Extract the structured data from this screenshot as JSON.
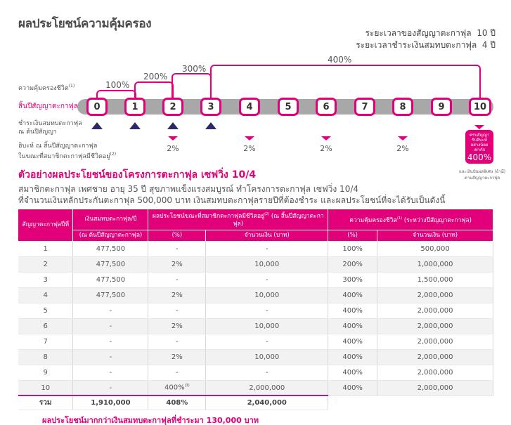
{
  "title": "ผลประโยชน์ความคุ้มครอง",
  "contract_period": {
    "label": "ระยะเวลาของสัญญาตะกาฟุล",
    "value": "10 ปี"
  },
  "payment_period": {
    "label": "ระยะเวลาชำระเงินสมทบตะกาฟุล",
    "value": "4 ปี"
  },
  "side_labels": {
    "life_coverage": "ความคุ้มครองชีวิต",
    "life_coverage_sup": "(1)",
    "year_end": "สิ้นปีสัญญาตะกาฟุลที่",
    "pay_line1": "ชำระเงินสมทบตะกาฟุล",
    "pay_line2": "ณ ต้นปีสัญญา",
    "benefit_line1": "ฮิบะห์ ณ สิ้นปีสัญญาตะกาฟุล",
    "benefit_line2": "ในขณะที่สมาชิกตะกาฟุลมีชีวิตอยู่",
    "benefit_sup": "(2)"
  },
  "timeline": {
    "years": [
      "0",
      "1",
      "2",
      "3",
      "4",
      "5",
      "6",
      "7",
      "8",
      "9",
      "10"
    ],
    "coverage_steps": [
      "100%",
      "200%",
      "300%",
      "400%"
    ],
    "benefit_pcts": [
      "2%",
      "2%",
      "2%",
      "2%"
    ]
  },
  "badge": {
    "line1": "ครบสัญญา",
    "line2": "รับฮิบะห์",
    "line3": "อย่างน้อยเท่ากับ",
    "value": "400%",
    "sup": "(3)"
  },
  "badge_note": {
    "line1": "และเงินปันผลพิเศษ (ถ้ามี)",
    "line2": "ตามสัญญาตะกาฟุล"
  },
  "example": {
    "title": "ตัวอย่างผลประโยชน์ของโครงการตะกาฟุล เซฟวิ่ง 10/4",
    "line1": "สมาชิกตะกาฟุล เพศชาย อายุ 35 ปี สุขภาพแข็งแรงสมบูรณ์ ทำโครงการตะกาฟุล เซฟวิ่ง 10/4",
    "line2": "ที่จำนวนเงินหลักประกันตะกาฟุล 500,000 บาท เงินสมทบตะกาฟุลรายปีที่ต้องชำระ และผลประโยชน์ที่จะได้รับเป็นดังนี้"
  },
  "table": {
    "h_year": "สัญญาตะกาฟุลปีที่",
    "h_contrib": "เงินสมทบตะกาฟุล/ปี",
    "h_contrib_sub": "(ณ ต้นปีสัญญาตะกาฟุล)",
    "h_benefit": "ผลประโยชน์ขณะที่สมาชิกตะกาฟุลมีชีวิตอยู่",
    "h_benefit_sup": "(2)",
    "h_benefit_tail": " (ณ สิ้นปีสัญญาตะกาฟุล)",
    "h_coverage": "ความคุ้มครองชีวิต",
    "h_coverage_sup": "(1)",
    "h_coverage_tail": " (ระหว่างปีสัญญาตะกาฟุล)",
    "h_pct": "(%)",
    "h_amount": "จำนวนเงิน (บาท)",
    "rows": [
      {
        "year": "1",
        "contrib": "477,500",
        "bpct": "-",
        "bamt": "-",
        "cpct": "100%",
        "camt": "500,000"
      },
      {
        "year": "2",
        "contrib": "477,500",
        "bpct": "2%",
        "bamt": "10,000",
        "cpct": "200%",
        "camt": "1,000,000"
      },
      {
        "year": "3",
        "contrib": "477,500",
        "bpct": "-",
        "bamt": "-",
        "cpct": "300%",
        "camt": "1,500,000"
      },
      {
        "year": "4",
        "contrib": "477,500",
        "bpct": "2%",
        "bamt": "10,000",
        "cpct": "400%",
        "camt": "2,000,000"
      },
      {
        "year": "5",
        "contrib": "-",
        "bpct": "-",
        "bamt": "-",
        "cpct": "400%",
        "camt": "2,000,000"
      },
      {
        "year": "6",
        "contrib": "-",
        "bpct": "2%",
        "bamt": "10,000",
        "cpct": "400%",
        "camt": "2,000,000"
      },
      {
        "year": "7",
        "contrib": "-",
        "bpct": "-",
        "bamt": "-",
        "cpct": "400%",
        "camt": "2,000,000"
      },
      {
        "year": "8",
        "contrib": "-",
        "bpct": "2%",
        "bamt": "10,000",
        "cpct": "400%",
        "camt": "2,000,000"
      },
      {
        "year": "9",
        "contrib": "-",
        "bpct": "-",
        "bamt": "-",
        "cpct": "400%",
        "camt": "2,000,000"
      },
      {
        "year": "10",
        "contrib": "-",
        "bpct": "400%",
        "bpct_sup": "(3)",
        "bamt": "2,000,000",
        "cpct": "400%",
        "camt": "2,000,000"
      }
    ],
    "total": {
      "label": "รวม",
      "contrib": "1,910,000",
      "bpct": "408%",
      "bamt": "2,040,000"
    }
  },
  "footer": "ผลประโยชน์มากกว่าเงินสมทบตะกาฟุลที่ชำระมา 130,000 บาท",
  "colors": {
    "accent": "#e1007a",
    "navy": "#2c2a6b",
    "track": "#a8a8a8"
  }
}
